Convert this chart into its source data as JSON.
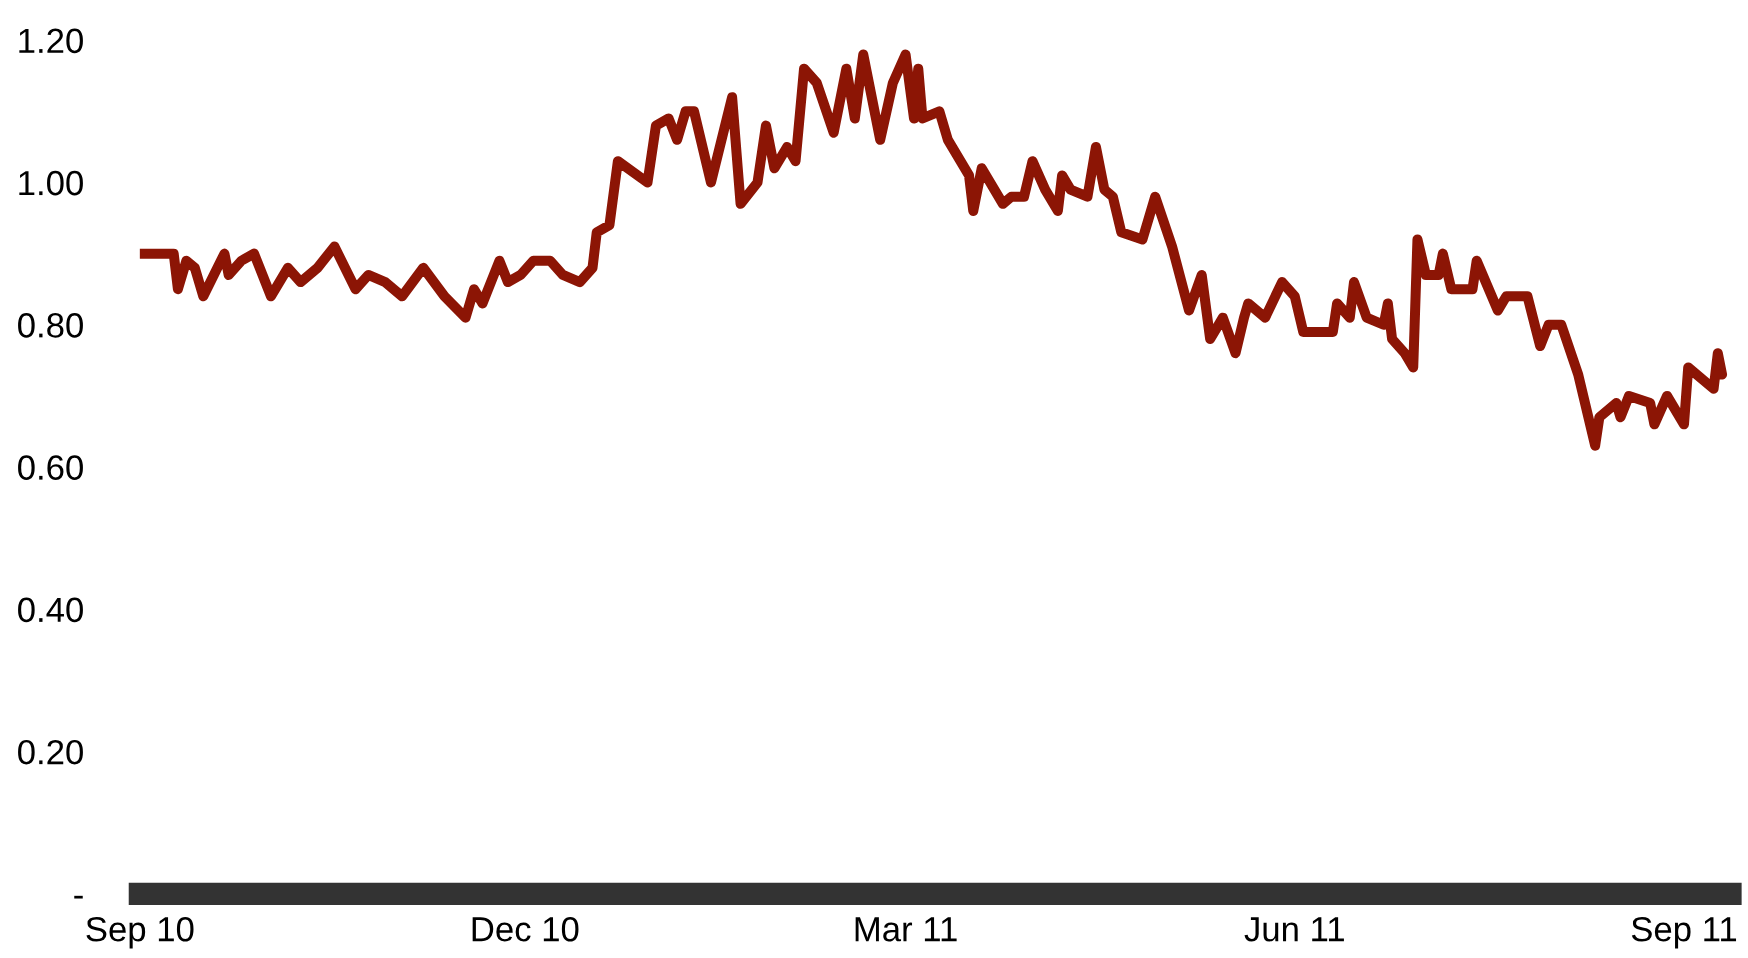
{
  "chart_data": {
    "type": "line",
    "x": [
      "2010-09-01",
      "2010-09-07",
      "2010-09-09",
      "2010-09-10",
      "2010-09-12",
      "2010-09-14",
      "2010-09-16",
      "2010-09-21",
      "2010-09-22",
      "2010-09-25",
      "2010-09-28",
      "2010-10-02",
      "2010-10-06",
      "2010-10-09",
      "2010-10-13",
      "2010-10-17",
      "2010-10-22",
      "2010-10-25",
      "2010-10-29",
      "2010-11-02",
      "2010-11-07",
      "2010-11-12",
      "2010-11-17",
      "2010-11-19",
      "2010-11-21",
      "2010-11-25",
      "2010-11-27",
      "2010-11-30",
      "2010-12-03",
      "2010-12-07",
      "2010-12-10",
      "2010-12-14",
      "2010-12-17",
      "2010-12-18",
      "2010-12-21",
      "2010-12-23",
      "2010-12-30",
      "2011-01-01",
      "2011-01-04",
      "2011-01-06",
      "2011-01-08",
      "2011-01-10",
      "2011-01-14",
      "2011-01-19",
      "2011-01-21",
      "2011-01-25",
      "2011-01-27",
      "2011-01-29",
      "2011-02-01",
      "2011-02-03",
      "2011-02-05",
      "2011-02-08",
      "2011-02-12",
      "2011-02-15",
      "2011-02-17",
      "2011-02-19",
      "2011-02-23",
      "2011-02-26",
      "2011-03-01",
      "2011-03-03",
      "2011-03-04",
      "2011-03-05",
      "2011-03-09",
      "2011-03-11",
      "2011-03-16",
      "2011-03-17",
      "2011-03-19",
      "2011-03-24",
      "2011-03-26",
      "2011-03-29",
      "2011-03-31",
      "2011-04-03",
      "2011-04-06",
      "2011-04-07",
      "2011-04-09",
      "2011-04-13",
      "2011-04-15",
      "2011-04-17",
      "2011-04-19",
      "2011-04-21",
      "2011-04-26",
      "2011-04-29",
      "2011-05-03",
      "2011-05-07",
      "2011-05-10",
      "2011-05-12",
      "2011-05-15",
      "2011-05-18",
      "2011-05-20",
      "2011-05-21",
      "2011-05-25",
      "2011-05-29",
      "2011-06-01",
      "2011-06-03",
      "2011-06-10",
      "2011-06-11",
      "2011-06-14",
      "2011-06-15",
      "2011-06-18",
      "2011-06-22",
      "2011-06-23",
      "2011-06-24",
      "2011-06-27",
      "2011-06-29",
      "2011-06-30",
      "2011-07-02",
      "2011-07-05",
      "2011-07-06",
      "2011-07-08",
      "2011-07-13",
      "2011-07-14",
      "2011-07-19",
      "2011-07-21",
      "2011-07-26",
      "2011-07-29",
      "2011-07-31",
      "2011-08-03",
      "2011-08-07",
      "2011-08-11",
      "2011-08-12",
      "2011-08-16",
      "2011-08-17",
      "2011-08-19",
      "2011-08-24",
      "2011-08-25",
      "2011-08-28",
      "2011-09-01",
      "2011-09-02",
      "2011-09-08",
      "2011-09-09",
      "2011-09-10"
    ],
    "series": [
      {
        "color": "#8c1505",
        "values": [
          0.9,
          0.9,
          0.9,
          0.85,
          0.89,
          0.88,
          0.84,
          0.9,
          0.87,
          0.89,
          0.9,
          0.84,
          0.88,
          0.86,
          0.88,
          0.91,
          0.85,
          0.87,
          0.86,
          0.84,
          0.88,
          0.84,
          0.81,
          0.85,
          0.83,
          0.89,
          0.86,
          0.87,
          0.89,
          0.89,
          0.87,
          0.86,
          0.88,
          0.93,
          0.94,
          1.03,
          1.0,
          1.08,
          1.09,
          1.06,
          1.1,
          1.1,
          1.0,
          1.12,
          0.97,
          1.0,
          1.08,
          1.02,
          1.05,
          1.03,
          1.16,
          1.14,
          1.07,
          1.16,
          1.09,
          1.18,
          1.06,
          1.14,
          1.18,
          1.09,
          1.16,
          1.09,
          1.1,
          1.06,
          1.01,
          0.96,
          1.02,
          0.97,
          0.98,
          0.98,
          1.03,
          0.99,
          0.96,
          1.01,
          0.99,
          0.98,
          1.05,
          0.99,
          0.98,
          0.93,
          0.92,
          0.98,
          0.91,
          0.82,
          0.87,
          0.78,
          0.81,
          0.76,
          0.81,
          0.83,
          0.81,
          0.86,
          0.84,
          0.79,
          0.79,
          0.83,
          0.81,
          0.86,
          0.81,
          0.8,
          0.83,
          0.78,
          0.76,
          0.74,
          0.92,
          0.87,
          0.87,
          0.9,
          0.85,
          0.85,
          0.89,
          0.82,
          0.84,
          0.84,
          0.77,
          0.8,
          0.8,
          0.73,
          0.63,
          0.67,
          0.69,
          0.67,
          0.7,
          0.69,
          0.66,
          0.7,
          0.66,
          0.74,
          0.71,
          0.76,
          0.73
        ]
      }
    ],
    "xlim": [
      "2010-09-01",
      "2011-09-12"
    ],
    "xticks": [
      {
        "value": "2010-09-01",
        "label": "Sep 10"
      },
      {
        "value": "2010-12-01",
        "label": "Dec 10"
      },
      {
        "value": "2011-03-01",
        "label": "Mar 11"
      },
      {
        "value": "2011-06-01",
        "label": "Jun 11"
      },
      {
        "value": "2011-09-01",
        "label": "Sep 11"
      }
    ],
    "ylim": [
      0,
      1.2
    ],
    "yticks": [
      {
        "value": 0,
        "label": "-"
      },
      {
        "value": 0.2,
        "label": "0.20"
      },
      {
        "value": 0.4,
        "label": "0.40"
      },
      {
        "value": 0.6,
        "label": "0.60"
      },
      {
        "value": 0.8,
        "label": "0.80"
      },
      {
        "value": 1.0,
        "label": "1.00"
      },
      {
        "value": 1.2,
        "label": "1.20"
      }
    ],
    "grid": false,
    "legend": false,
    "marker": "none",
    "line_style": "solid"
  }
}
